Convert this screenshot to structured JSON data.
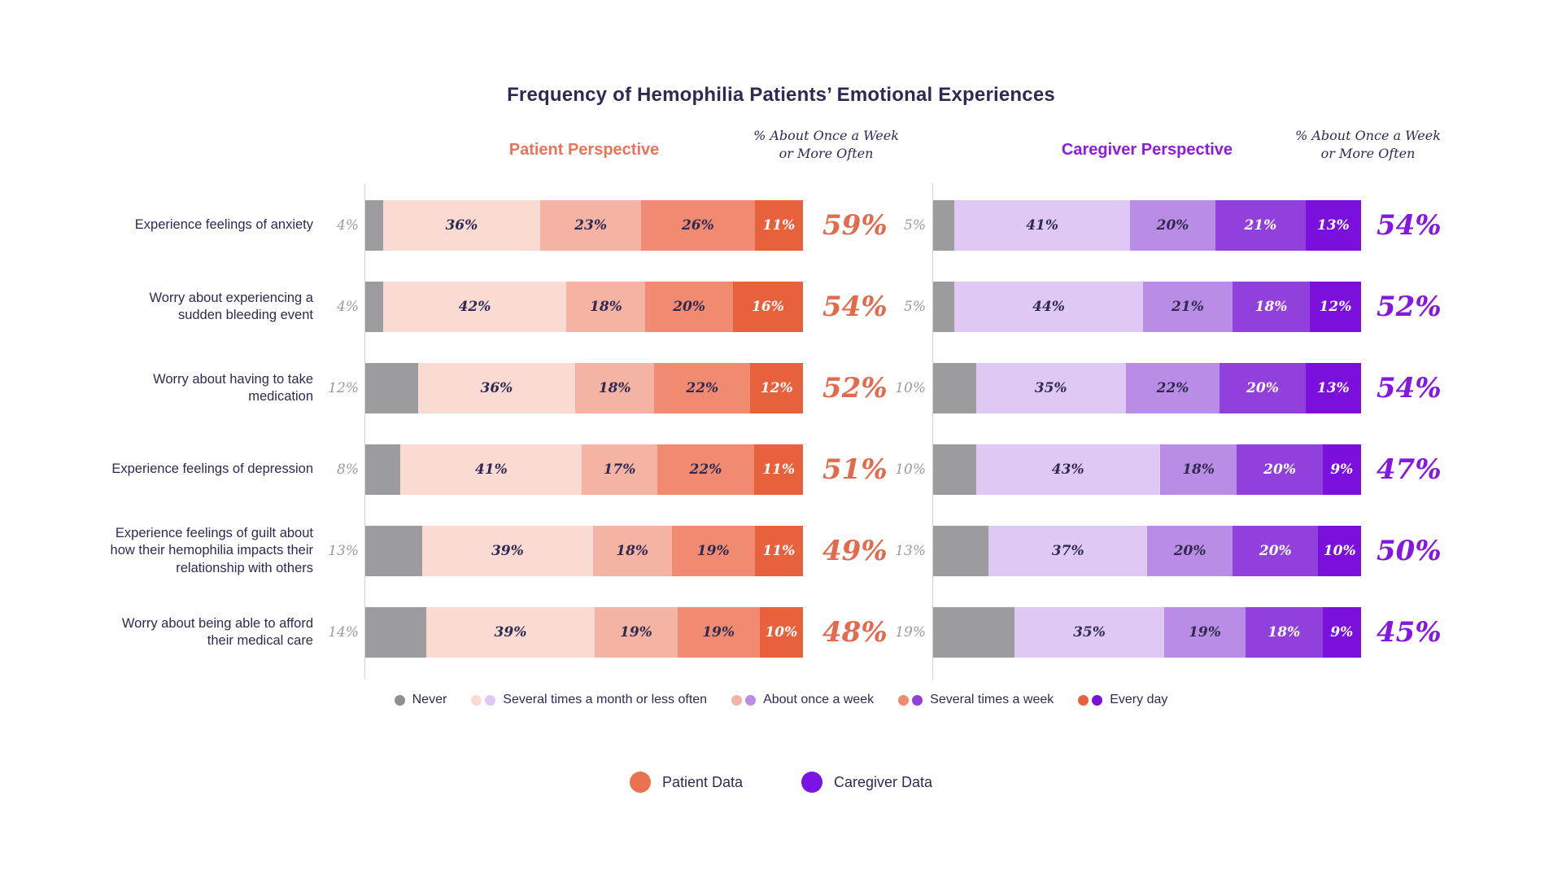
{
  "title": "Frequency of Hemophilia Patients’ Emotional Experiences",
  "panels_ui": {
    "patient_header": "Patient Perspective",
    "caregiver_header": "Caregiver Perspective",
    "patient_summary_note": "% About Once a Week or More Often",
    "caregiver_summary_note": "% About Once a Week or More Often"
  },
  "frequency_legend": {
    "items": [
      {
        "label": "Never",
        "dots": [
          "gray"
        ]
      },
      {
        "label": "Several times a month or less often",
        "dots": [
          "patient-light",
          "caregiver-light"
        ]
      },
      {
        "label": "About once a week",
        "dots": [
          "patient-medium",
          "caregiver-medium"
        ]
      },
      {
        "label": "Several times a week",
        "dots": [
          "patient-strong",
          "caregiver-strong"
        ]
      },
      {
        "label": "Every day",
        "dots": [
          "patient-dark",
          "caregiver-dark"
        ]
      }
    ]
  },
  "series_legend": {
    "patient": "Patient Data",
    "caregiver": "Caregiver Data"
  },
  "colors": {
    "text_navy": "#2f2a52",
    "never_gray": "#9c9c9e",
    "never_label_gray": "#9b9b9b",
    "axis_gray": "#d2d2d2",
    "patient": {
      "header": "#e8745c",
      "summary_number": "#e26a4d",
      "legend_dot": "#e8724f",
      "segments": [
        "#fadbd3",
        "#f5b3a3",
        "#f08b72",
        "#e7613d"
      ]
    },
    "caregiver": {
      "header": "#8c1ce4",
      "summary_number": "#8418e1",
      "legend_dot": "#7a13e4",
      "segments": [
        "#dfc9f4",
        "#b98de5",
        "#9240db",
        "#7b10dc"
      ]
    }
  },
  "chart_data": {
    "type": "bar",
    "orientation": "horizontal",
    "stacked": true,
    "title": "Frequency of Hemophilia Patients’ Emotional Experiences",
    "segment_order": [
      "Never",
      "Several times a month or less often",
      "About once a week",
      "Several times a week",
      "Every day"
    ],
    "units": "percent",
    "categories": [
      "Experience feelings of anxiety",
      "Worry about experiencing a sudden bleeding event",
      "Worry about having to take medication",
      "Experience feelings of depression",
      "Experience feelings of guilt about how their hemophilia impacts their relationship with others",
      "Worry about being able to afford their medical care"
    ],
    "panels": [
      {
        "name": "Patient Perspective",
        "summary_header": "% About Once a Week or More Often",
        "rows": [
          {
            "never": 4,
            "values": [
              36,
              23,
              26,
              11
            ],
            "summary": 59
          },
          {
            "never": 4,
            "values": [
              42,
              18,
              20,
              16
            ],
            "summary": 54
          },
          {
            "never": 12,
            "values": [
              36,
              18,
              22,
              12
            ],
            "summary": 52
          },
          {
            "never": 8,
            "values": [
              41,
              17,
              22,
              11
            ],
            "summary": 51
          },
          {
            "never": 13,
            "values": [
              39,
              18,
              19,
              11
            ],
            "summary": 49
          },
          {
            "never": 14,
            "values": [
              39,
              19,
              19,
              10
            ],
            "summary": 48
          }
        ]
      },
      {
        "name": "Caregiver Perspective",
        "summary_header": "% About Once a Week or More Often",
        "rows": [
          {
            "never": 5,
            "values": [
              41,
              20,
              21,
              13
            ],
            "summary": 54
          },
          {
            "never": 5,
            "values": [
              44,
              21,
              18,
              12
            ],
            "summary": 52
          },
          {
            "never": 10,
            "values": [
              35,
              22,
              20,
              13
            ],
            "summary": 54
          },
          {
            "never": 10,
            "values": [
              43,
              18,
              20,
              9
            ],
            "summary": 47
          },
          {
            "never": 13,
            "values": [
              37,
              20,
              20,
              10
            ],
            "summary": 50
          },
          {
            "never": 19,
            "values": [
              35,
              19,
              18,
              9
            ],
            "summary": 45
          }
        ]
      }
    ]
  }
}
